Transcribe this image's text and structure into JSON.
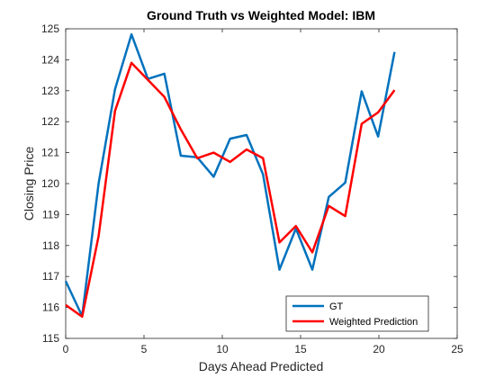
{
  "chart_data": {
    "type": "line",
    "title": "Ground Truth vs Weighted Model: IBM",
    "xlabel": "Days Ahead Predicted",
    "ylabel": "Closing Price",
    "xlim": [
      0,
      25
    ],
    "ylim": [
      115,
      125
    ],
    "xticks": [
      0,
      5,
      10,
      15,
      20,
      25
    ],
    "yticks": [
      115,
      116,
      117,
      118,
      119,
      120,
      121,
      122,
      123,
      124,
      125
    ],
    "grid": false,
    "legend_position": "bottom-right",
    "x": [
      0,
      1.05,
      2.1,
      3.15,
      4.2,
      5.25,
      6.3,
      7.35,
      8.4,
      9.45,
      10.5,
      11.55,
      12.6,
      13.65,
      14.7,
      15.75,
      16.8,
      17.85,
      18.9,
      19.95,
      21
    ],
    "series": [
      {
        "name": "GT",
        "color": "#0072BD",
        "values": [
          116.85,
          115.72,
          120.0,
          123.05,
          124.82,
          123.38,
          123.55,
          120.9,
          120.85,
          120.22,
          121.45,
          121.57,
          120.3,
          117.22,
          118.55,
          117.22,
          119.57,
          120.03,
          122.98,
          121.52,
          124.25
        ]
      },
      {
        "name": "Weighted Prediction",
        "color": "#FF0000",
        "values": [
          116.08,
          115.7,
          118.3,
          122.35,
          123.9,
          123.35,
          122.8,
          121.75,
          120.82,
          121.0,
          120.7,
          121.1,
          120.82,
          118.1,
          118.63,
          117.78,
          119.28,
          118.95,
          121.93,
          122.3,
          123.02
        ]
      }
    ]
  }
}
